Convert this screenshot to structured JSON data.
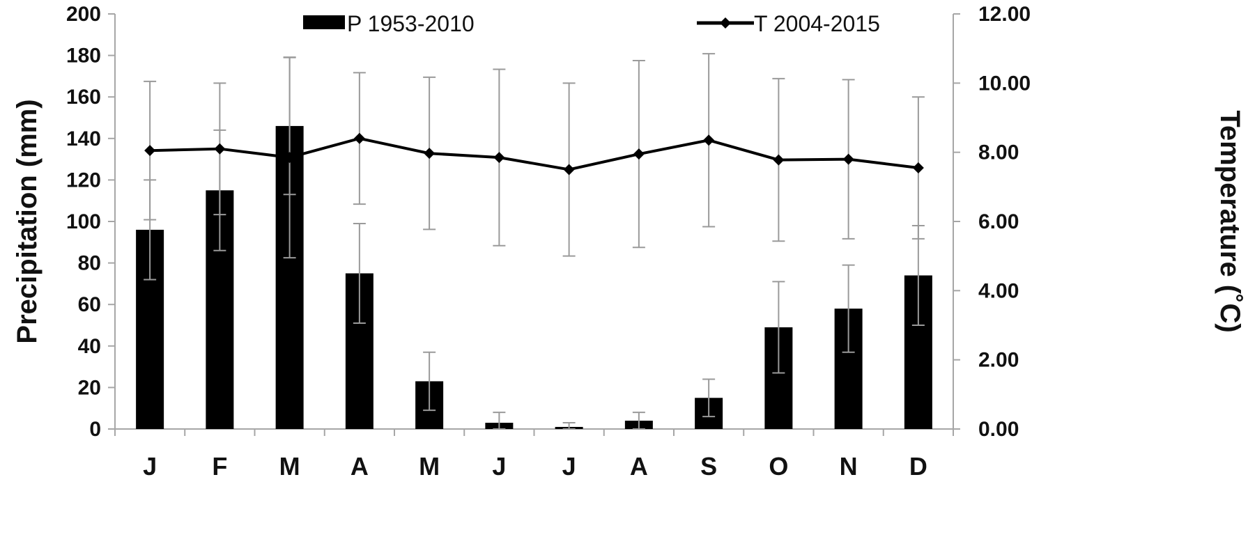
{
  "chart_data": {
    "type": "bar+line",
    "categories": [
      "J",
      "F",
      "M",
      "A",
      "M",
      "J",
      "J",
      "A",
      "S",
      "O",
      "N",
      "D"
    ],
    "legend": {
      "placement": "top",
      "entries": [
        "P 1953-2010",
        "T 2004-2015"
      ]
    },
    "series": [
      {
        "name": "P 1953-2010",
        "type": "bar",
        "axis": "left",
        "values": [
          96,
          115,
          146,
          75,
          23,
          3,
          1,
          4,
          15,
          49,
          58,
          74
        ],
        "error": [
          24,
          29,
          33,
          24,
          14,
          5,
          2,
          4,
          9,
          22,
          21,
          24
        ]
      },
      {
        "name": "T 2004-2015",
        "type": "line",
        "axis": "right",
        "values": [
          8.05,
          8.1,
          7.85,
          8.4,
          7.97,
          7.85,
          7.5,
          7.95,
          8.35,
          7.78,
          7.8,
          7.55
        ],
        "error": [
          2.0,
          1.9,
          2.9,
          1.9,
          2.2,
          2.55,
          2.5,
          2.7,
          2.5,
          2.35,
          2.3,
          2.05
        ]
      }
    ],
    "ylabel": "Precipitation (mm)",
    "y2label": "Temperature (˚C)",
    "xlabel": "",
    "ylim": [
      0,
      200
    ],
    "y2lim": [
      0,
      12
    ],
    "yticks": [
      "0",
      "20",
      "40",
      "60",
      "80",
      "100",
      "120",
      "140",
      "160",
      "180",
      "200"
    ],
    "y2ticks": [
      "0.00",
      "2.00",
      "4.00",
      "6.00",
      "8.00",
      "10.00",
      "12.00"
    ],
    "grid": false,
    "colors": {
      "bars": "#000000",
      "line": "#000000",
      "error_bars": "#9a9a9a",
      "axis": "#a6a6a6"
    }
  }
}
